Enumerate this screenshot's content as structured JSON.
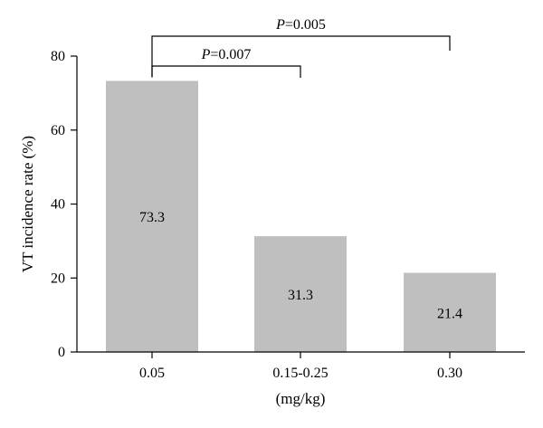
{
  "chart_data": {
    "type": "bar",
    "categories": [
      "0.05",
      "0.15-0.25",
      "0.30"
    ],
    "values": [
      73.3,
      31.3,
      21.4
    ],
    "data_labels": [
      "73.3",
      "31.3",
      "21.4"
    ],
    "title": "",
    "xlabel": "(mg/kg)",
    "ylabel": "VT incidence rate (%)",
    "ylim": [
      0,
      80
    ],
    "yticks": [
      "0",
      "20",
      "40",
      "60",
      "80"
    ],
    "bar_color": "#bfbfbf",
    "grid": false,
    "legend": "none",
    "annotations": [
      {
        "from": 0,
        "to": 1,
        "p_symbol": "P",
        "p_value": "=0.007"
      },
      {
        "from": 0,
        "to": 2,
        "p_symbol": "P",
        "p_value": "=0.005"
      }
    ]
  }
}
